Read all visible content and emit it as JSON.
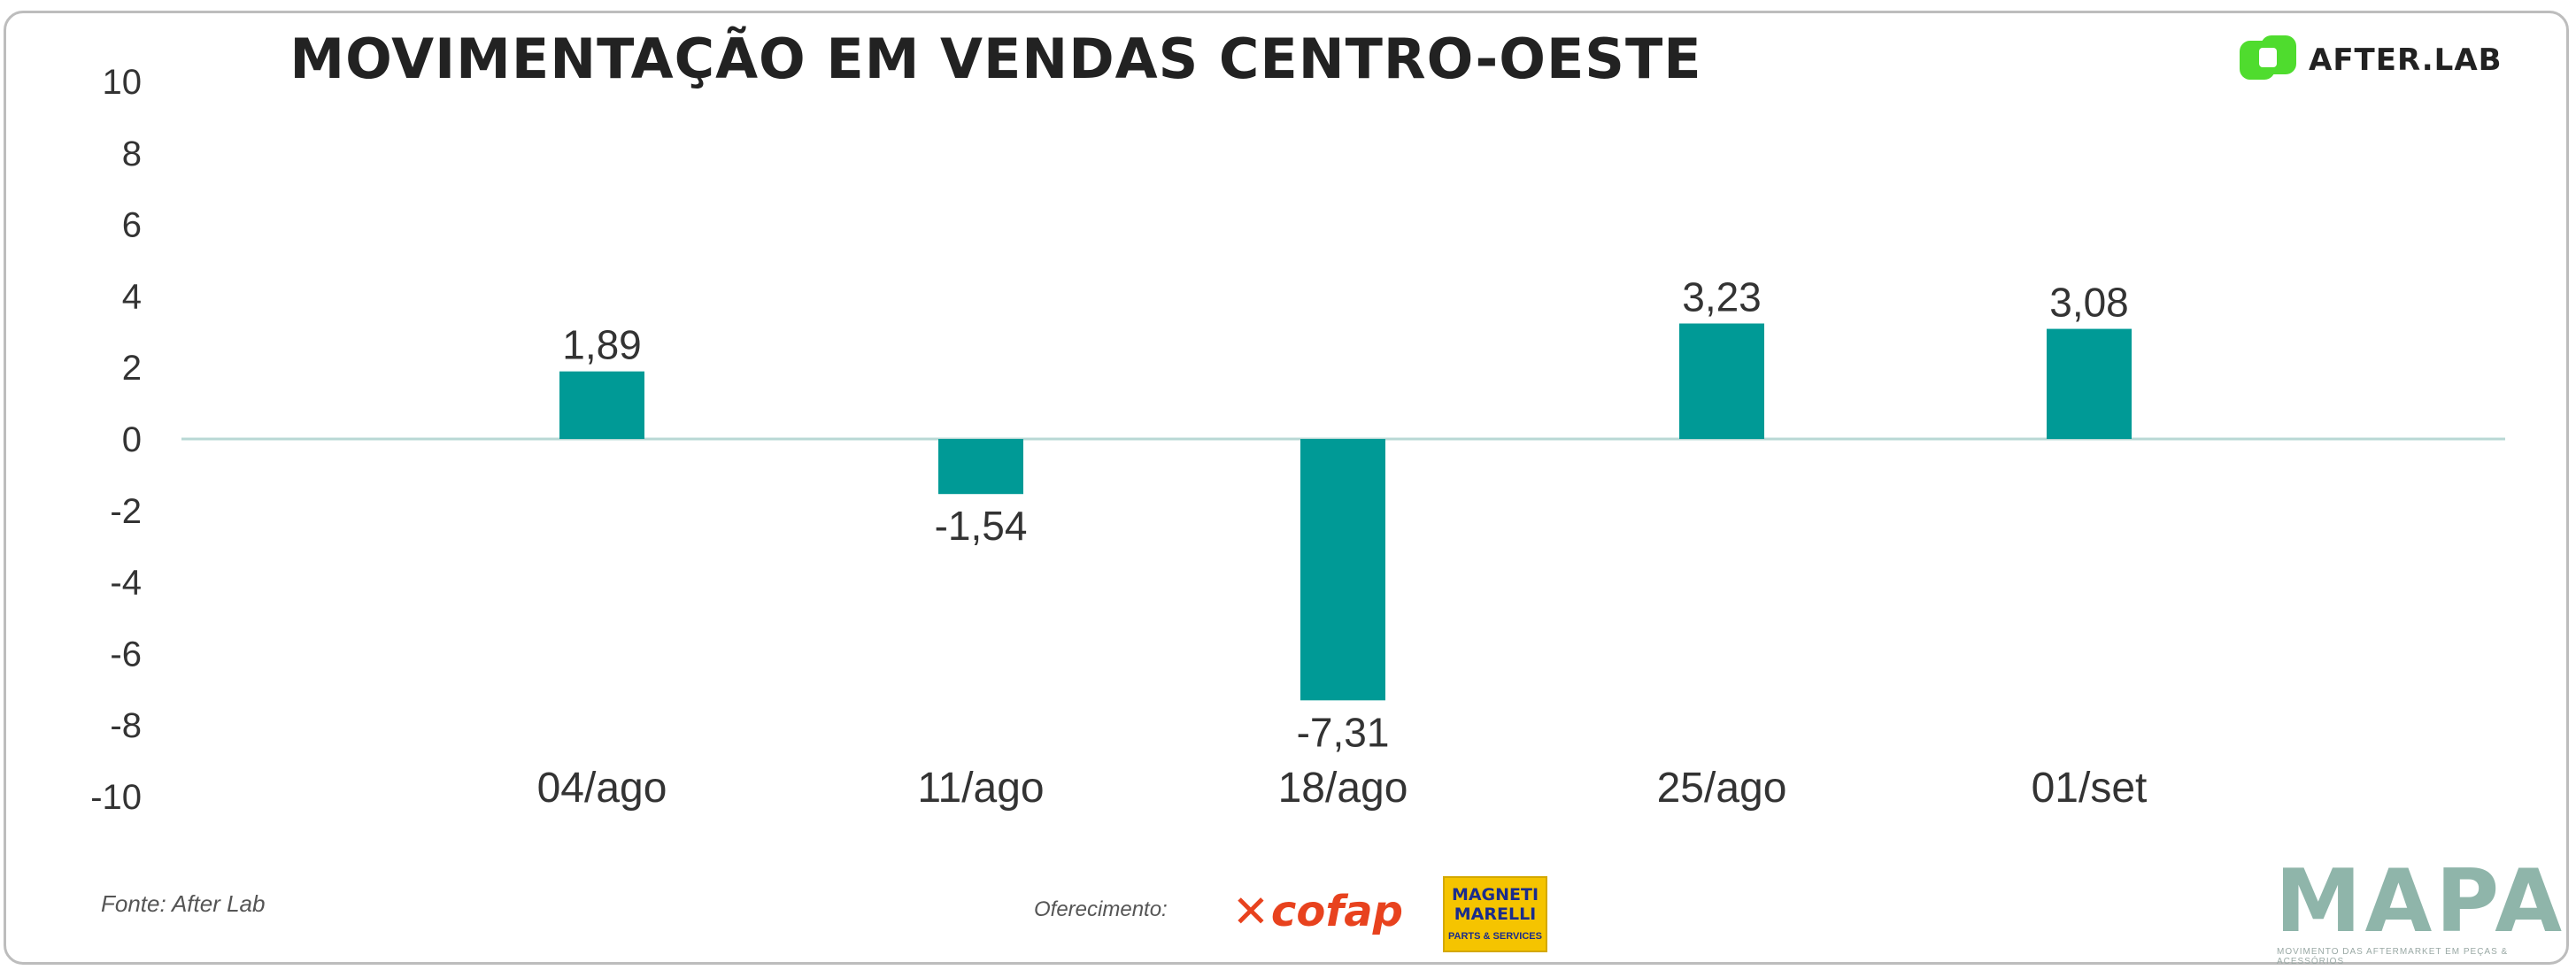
{
  "colors": {
    "bar": "#009a96",
    "zero_line": "#b8d8d5",
    "text": "#333333"
  },
  "header": {
    "title": "MOVIMENTAÇÃO EM VENDAS CENTRO-OESTE",
    "brand": "AFTER.LAB",
    "brand_icon": "afterlab-logo-icon"
  },
  "chart_data": {
    "type": "bar",
    "title": "MOVIMENTAÇÃO EM VENDAS CENTRO-OESTE",
    "categories": [
      "04/ago",
      "11/ago",
      "18/ago",
      "25/ago",
      "01/set"
    ],
    "values": [
      1.89,
      -1.54,
      -7.31,
      3.23,
      3.08
    ],
    "value_labels": [
      "1,89",
      "-1,54",
      "-7,31",
      "3,23",
      "3,08"
    ],
    "ylim": [
      -10,
      10
    ],
    "yticks": [
      -10,
      -8,
      -6,
      -4,
      -2,
      0,
      2,
      4,
      6,
      8,
      10
    ],
    "xlabel": "",
    "ylabel": "",
    "grid": false,
    "legend": "none"
  },
  "footer": {
    "source": "Fonte: After Lab",
    "sponsor_label": "Oferecimento:",
    "sponsor1": "cofap",
    "sponsor1_mark": "✕",
    "sponsor2_line1": "MAGNETI",
    "sponsor2_line2": "MARELLI",
    "sponsor2_line3": "PARTS & SERVICES",
    "mapa": "MAPA",
    "mapa_tagline": "MOVIMENTO DAS AFTERMARKET EM PEÇAS & ACESSÓRIOS"
  }
}
